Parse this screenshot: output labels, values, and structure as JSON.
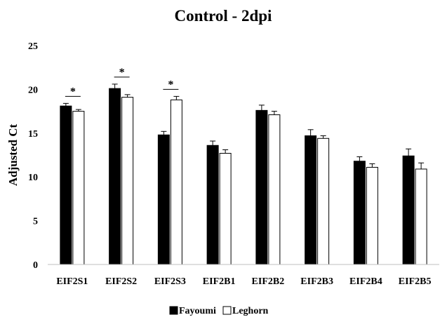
{
  "chart_data": {
    "type": "bar",
    "title": "Control - 2dpi",
    "xlabel": "",
    "ylabel": "Adjusted Ct",
    "ylim": [
      0,
      25
    ],
    "yticks": [
      0,
      5,
      10,
      15,
      20,
      25
    ],
    "grid": false,
    "legend_position": "bottom",
    "categories": [
      "EIF2S1",
      "EIF2S2",
      "EIF2S3",
      "EIF2B1",
      "EIF2B2",
      "EIF2B3",
      "EIF2B4",
      "EIF2B5"
    ],
    "series": [
      {
        "name": "Fayoumi",
        "color": "#000000",
        "values": [
          18.1,
          20.1,
          14.8,
          13.6,
          17.6,
          14.7,
          11.8,
          12.4
        ],
        "errors": [
          0.3,
          0.5,
          0.4,
          0.5,
          0.6,
          0.7,
          0.5,
          0.8
        ]
      },
      {
        "name": "Leghorn",
        "color": "#ffffff",
        "values": [
          17.5,
          19.1,
          18.8,
          12.7,
          17.1,
          14.4,
          11.1,
          10.9
        ],
        "errors": [
          0.2,
          0.3,
          0.4,
          0.4,
          0.4,
          0.3,
          0.4,
          0.7
        ]
      }
    ],
    "annotations": [
      {
        "category": "EIF2S1",
        "text": "*"
      },
      {
        "category": "EIF2S2",
        "text": "*"
      },
      {
        "category": "EIF2S3",
        "text": "*"
      }
    ]
  }
}
